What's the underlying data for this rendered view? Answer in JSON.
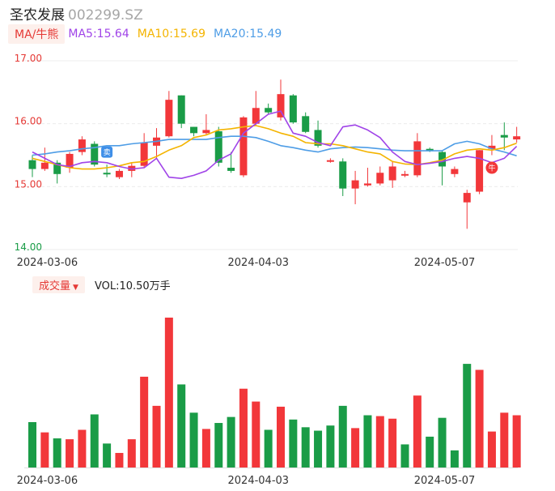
{
  "header": {
    "name": "圣农发展",
    "code": "002299.SZ"
  },
  "ma_legend": {
    "tag": "MA/牛熊",
    "ma5": "MA5:15.64",
    "ma10": "MA10:15.69",
    "ma20": "MA20:15.49"
  },
  "volume_legend": {
    "tag": "成交量",
    "vol": "VOL:10.50万手"
  },
  "markers": {
    "sell": "卖",
    "buy": "牛"
  },
  "colors": {
    "up": "#f2373a",
    "down": "#1a9c47",
    "ma5": "#a044e8",
    "ma10": "#f4b400",
    "ma20": "#4e9de6",
    "price_axis": "#e53935",
    "low_axis": "#1a9c47"
  },
  "chart_data": [
    {
      "type": "candlestick",
      "title": "",
      "y_ticks": [
        "17.00",
        "16.00",
        "15.00",
        "14.00"
      ],
      "ylim": [
        14.0,
        17.0
      ],
      "x_tick_labels": [
        "2024-03-06",
        "2024-04-03",
        "2024-05-07"
      ],
      "x_tick_indices": [
        1,
        18,
        33
      ],
      "grid": true,
      "candles": [
        {
          "o": 15.42,
          "h": 15.5,
          "l": 15.15,
          "c": 15.28
        },
        {
          "o": 15.28,
          "h": 15.62,
          "l": 15.25,
          "c": 15.38
        },
        {
          "o": 15.38,
          "h": 15.42,
          "l": 15.05,
          "c": 15.2
        },
        {
          "o": 15.3,
          "h": 15.55,
          "l": 15.22,
          "c": 15.52
        },
        {
          "o": 15.55,
          "h": 15.8,
          "l": 15.5,
          "c": 15.75
        },
        {
          "o": 15.68,
          "h": 15.72,
          "l": 15.32,
          "c": 15.35
        },
        {
          "o": 15.22,
          "h": 15.35,
          "l": 15.15,
          "c": 15.2
        },
        {
          "o": 15.15,
          "h": 15.28,
          "l": 15.12,
          "c": 15.25
        },
        {
          "o": 15.25,
          "h": 15.38,
          "l": 15.15,
          "c": 15.33
        },
        {
          "o": 15.33,
          "h": 15.85,
          "l": 15.3,
          "c": 15.7
        },
        {
          "o": 15.65,
          "h": 15.93,
          "l": 15.45,
          "c": 15.78
        },
        {
          "o": 15.8,
          "h": 16.52,
          "l": 15.78,
          "c": 16.38
        },
        {
          "o": 16.45,
          "h": 16.45,
          "l": 15.93,
          "c": 16.0
        },
        {
          "o": 15.95,
          "h": 15.95,
          "l": 15.8,
          "c": 15.85
        },
        {
          "o": 15.85,
          "h": 16.15,
          "l": 15.82,
          "c": 15.9
        },
        {
          "o": 15.88,
          "h": 15.95,
          "l": 15.32,
          "c": 15.38
        },
        {
          "o": 15.3,
          "h": 15.55,
          "l": 15.22,
          "c": 15.25
        },
        {
          "o": 15.18,
          "h": 16.12,
          "l": 15.15,
          "c": 16.1
        },
        {
          "o": 16.0,
          "h": 16.52,
          "l": 15.97,
          "c": 16.25
        },
        {
          "o": 16.25,
          "h": 16.32,
          "l": 16.15,
          "c": 16.18
        },
        {
          "o": 16.1,
          "h": 16.7,
          "l": 16.05,
          "c": 16.47
        },
        {
          "o": 16.45,
          "h": 16.47,
          "l": 16.0,
          "c": 16.02
        },
        {
          "o": 16.12,
          "h": 16.18,
          "l": 15.85,
          "c": 15.87
        },
        {
          "o": 15.9,
          "h": 16.05,
          "l": 15.62,
          "c": 15.65
        },
        {
          "o": 15.4,
          "h": 15.45,
          "l": 15.38,
          "c": 15.42
        },
        {
          "o": 15.4,
          "h": 15.45,
          "l": 14.85,
          "c": 14.97
        },
        {
          "o": 14.97,
          "h": 15.25,
          "l": 14.72,
          "c": 15.1
        },
        {
          "o": 15.02,
          "h": 15.3,
          "l": 15.0,
          "c": 15.05
        },
        {
          "o": 15.05,
          "h": 15.32,
          "l": 15.02,
          "c": 15.22
        },
        {
          "o": 15.1,
          "h": 15.4,
          "l": 14.98,
          "c": 15.32
        },
        {
          "o": 15.2,
          "h": 15.25,
          "l": 15.15,
          "c": 15.2
        },
        {
          "o": 15.18,
          "h": 15.85,
          "l": 15.15,
          "c": 15.72
        },
        {
          "o": 15.6,
          "h": 15.62,
          "l": 15.55,
          "c": 15.58
        },
        {
          "o": 15.55,
          "h": 15.58,
          "l": 15.02,
          "c": 15.32
        },
        {
          "o": 15.2,
          "h": 15.32,
          "l": 15.15,
          "c": 15.28
        },
        {
          "o": 14.75,
          "h": 14.95,
          "l": 14.33,
          "c": 14.9
        },
        {
          "o": 14.92,
          "h": 15.58,
          "l": 14.88,
          "c": 15.58
        },
        {
          "o": 15.6,
          "h": 15.82,
          "l": 15.5,
          "c": 15.65
        },
        {
          "o": 15.82,
          "h": 16.02,
          "l": 15.58,
          "c": 15.78
        },
        {
          "o": 15.75,
          "h": 15.95,
          "l": 15.7,
          "c": 15.8
        }
      ],
      "ma5": [
        15.55,
        15.45,
        15.35,
        15.32,
        15.38,
        15.4,
        15.38,
        15.32,
        15.28,
        15.3,
        15.45,
        15.15,
        15.13,
        15.18,
        15.25,
        15.42,
        15.52,
        15.85,
        16.0,
        16.15,
        16.2,
        15.85,
        15.8,
        15.7,
        15.65,
        15.95,
        15.98,
        15.9,
        15.78,
        15.55,
        15.4,
        15.35,
        15.37,
        15.4,
        15.45,
        15.48,
        15.45,
        15.38,
        15.45,
        15.64
      ],
      "ma10": [
        15.45,
        15.4,
        15.35,
        15.3,
        15.28,
        15.28,
        15.3,
        15.33,
        15.38,
        15.4,
        15.48,
        15.58,
        15.65,
        15.78,
        15.82,
        15.9,
        15.92,
        15.95,
        15.97,
        15.92,
        15.85,
        15.8,
        15.7,
        15.68,
        15.68,
        15.65,
        15.6,
        15.55,
        15.52,
        15.4,
        15.36,
        15.35,
        15.38,
        15.42,
        15.52,
        15.58,
        15.6,
        15.58,
        15.62,
        15.69
      ],
      "ma20": [
        15.5,
        15.52,
        15.55,
        15.57,
        15.6,
        15.62,
        15.65,
        15.65,
        15.68,
        15.7,
        15.72,
        15.75,
        15.75,
        15.75,
        15.75,
        15.78,
        15.8,
        15.8,
        15.78,
        15.72,
        15.65,
        15.62,
        15.58,
        15.55,
        15.6,
        15.62,
        15.63,
        15.62,
        15.6,
        15.58,
        15.57,
        15.57,
        15.57,
        15.57,
        15.68,
        15.72,
        15.68,
        15.6,
        15.55,
        15.49
      ]
    },
    {
      "type": "bar",
      "title": "",
      "series": [
        {
          "values": [
            53,
            41,
            34,
            33,
            44,
            62,
            28,
            17,
            33,
            106,
            72,
            175,
            97,
            64,
            45,
            52,
            59,
            92,
            77,
            44,
            71,
            56,
            47,
            43,
            49,
            72,
            46,
            61,
            60,
            57,
            27,
            84,
            36,
            58,
            20,
            121,
            114,
            42,
            64,
            61
          ]
        }
      ],
      "directions": [
        "down",
        "up",
        "down",
        "up",
        "up",
        "down",
        "down",
        "up",
        "up",
        "up",
        "up",
        "up",
        "down",
        "down",
        "up",
        "down",
        "down",
        "up",
        "up",
        "down",
        "up",
        "down",
        "down",
        "down",
        "down",
        "down",
        "up",
        "down",
        "up",
        "up",
        "down",
        "up",
        "down",
        "down",
        "down",
        "down",
        "up",
        "up",
        "up",
        "up"
      ],
      "x_tick_labels": [
        "2024-03-06",
        "2024-04-03",
        "2024-05-07"
      ],
      "x_tick_indices": [
        1,
        18,
        33
      ]
    }
  ]
}
